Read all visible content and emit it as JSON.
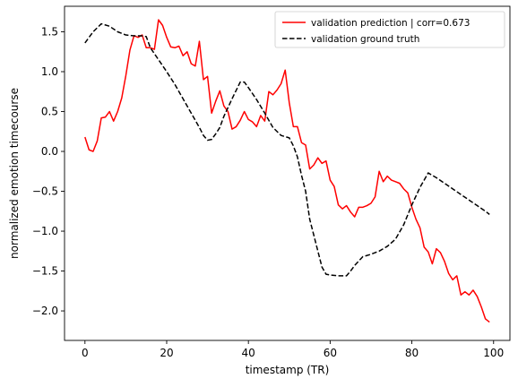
{
  "chart_data": {
    "type": "line",
    "xlabel": "timestamp (TR)",
    "ylabel": "normalized emotion timecourse",
    "xlim": [
      -5,
      104
    ],
    "ylim": [
      -2.37,
      1.82
    ],
    "xticks": [
      0,
      20,
      40,
      60,
      80,
      100
    ],
    "yticks": [
      -2.0,
      -1.5,
      -1.0,
      -0.5,
      0.0,
      0.5,
      1.0,
      1.5
    ],
    "grid": false,
    "legend_position": "top-right",
    "series": [
      {
        "name": "validation prediction | corr=0.673",
        "color": "#ff0000",
        "style": "solid",
        "x": [
          0,
          1,
          2,
          3,
          4,
          5,
          6,
          7,
          8,
          9,
          10,
          11,
          12,
          13,
          14,
          15,
          16,
          17,
          18,
          19,
          20,
          21,
          22,
          23,
          24,
          25,
          26,
          27,
          28,
          29,
          30,
          31,
          32,
          33,
          34,
          35,
          36,
          37,
          38,
          39,
          40,
          41,
          42,
          43,
          44,
          45,
          46,
          47,
          48,
          49,
          50,
          51,
          52,
          53,
          54,
          55,
          56,
          57,
          58,
          59,
          60,
          61,
          62,
          63,
          64,
          65,
          66,
          67,
          68,
          69,
          70,
          71,
          72,
          73,
          74,
          75,
          76,
          77,
          78,
          79,
          80,
          81,
          82,
          83,
          84,
          85,
          86,
          87,
          88,
          89,
          90,
          91,
          92,
          93,
          94,
          95,
          96,
          97,
          98,
          99
        ],
        "y": [
          0.18,
          0.02,
          0.0,
          0.13,
          0.42,
          0.43,
          0.5,
          0.38,
          0.5,
          0.67,
          0.95,
          1.27,
          1.45,
          1.43,
          1.46,
          1.3,
          1.3,
          1.28,
          1.65,
          1.58,
          1.43,
          1.31,
          1.3,
          1.32,
          1.2,
          1.25,
          1.1,
          1.07,
          1.38,
          0.9,
          0.94,
          0.48,
          0.63,
          0.76,
          0.57,
          0.5,
          0.28,
          0.31,
          0.39,
          0.5,
          0.4,
          0.37,
          0.31,
          0.45,
          0.38,
          0.75,
          0.71,
          0.77,
          0.85,
          1.02,
          0.61,
          0.31,
          0.31,
          0.11,
          0.08,
          -0.22,
          -0.17,
          -0.08,
          -0.15,
          -0.12,
          -0.36,
          -0.44,
          -0.67,
          -0.72,
          -0.68,
          -0.76,
          -0.82,
          -0.7,
          -0.7,
          -0.68,
          -0.65,
          -0.57,
          -0.25,
          -0.38,
          -0.31,
          -0.36,
          -0.38,
          -0.4,
          -0.47,
          -0.52,
          -0.7,
          -0.85,
          -0.96,
          -1.2,
          -1.26,
          -1.41,
          -1.22,
          -1.27,
          -1.38,
          -1.53,
          -1.61,
          -1.56,
          -1.8,
          -1.76,
          -1.8,
          -1.74,
          -1.82,
          -1.95,
          -2.1,
          -2.14
        ]
      },
      {
        "name": "validation ground truth",
        "color": "#000000",
        "style": "dashed",
        "x": [
          0,
          2,
          4,
          6,
          8,
          10,
          12,
          14,
          15,
          16,
          18,
          20,
          22,
          24,
          26,
          28,
          29,
          30,
          31,
          32,
          33,
          34,
          36,
          38,
          39,
          40,
          42,
          44,
          46,
          48,
          50,
          51,
          52,
          53,
          54,
          55,
          56,
          57,
          58,
          59,
          60,
          62,
          64,
          65,
          66,
          68,
          70,
          72,
          74,
          76,
          78,
          80,
          82,
          84,
          86,
          88,
          90,
          92,
          94,
          96,
          98,
          99
        ],
        "y": [
          1.36,
          1.5,
          1.6,
          1.57,
          1.5,
          1.46,
          1.45,
          1.45,
          1.44,
          1.3,
          1.15,
          1.0,
          0.84,
          0.66,
          0.48,
          0.3,
          0.2,
          0.14,
          0.15,
          0.22,
          0.3,
          0.44,
          0.66,
          0.87,
          0.87,
          0.8,
          0.65,
          0.48,
          0.3,
          0.2,
          0.17,
          0.07,
          -0.07,
          -0.3,
          -0.5,
          -0.85,
          -1.05,
          -1.25,
          -1.45,
          -1.54,
          -1.55,
          -1.56,
          -1.56,
          -1.5,
          -1.43,
          -1.32,
          -1.29,
          -1.25,
          -1.19,
          -1.1,
          -0.92,
          -0.67,
          -0.45,
          -0.27,
          -0.33,
          -0.4,
          -0.47,
          -0.54,
          -0.61,
          -0.68,
          -0.75,
          -0.79
        ]
      }
    ]
  }
}
